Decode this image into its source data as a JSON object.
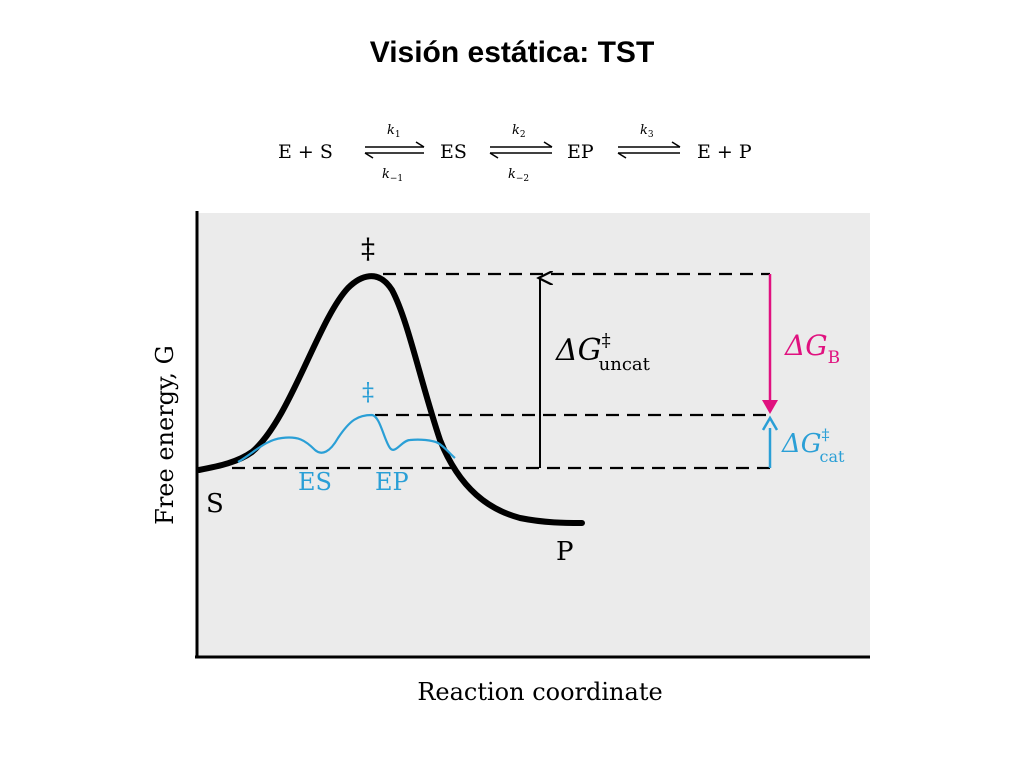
{
  "slide": {
    "title": "Visión estática: TST"
  },
  "scheme": {
    "E_plus_S": "E + S",
    "ES": "ES",
    "EP": "EP",
    "E_plus_P": "E + P",
    "k1": "k",
    "k1_sub": "1",
    "km1": "k",
    "km1_sub": "−1",
    "k2": "k",
    "k2_sub": "2",
    "km2": "k",
    "km2_sub": "−2",
    "k3": "k",
    "k3_sub": "3"
  },
  "diagram": {
    "y_axis_label": "Free energy, G",
    "x_axis_label": "Reaction coordinate",
    "label_S": "S",
    "label_P": "P",
    "label_ES": "ES",
    "label_EP": "EP",
    "ts_uncat": "‡",
    "ts_cat": "‡",
    "dG_uncat_main": "ΔG",
    "dG_uncat_sup": "‡",
    "dG_uncat_sub": "uncat",
    "dG_B_main": "ΔG",
    "dG_B_sub": "B",
    "dG_cat_main": "ΔG",
    "dG_cat_sup": "‡",
    "dG_cat_sub": "cat",
    "colors": {
      "uncatalyzed": "#000000",
      "catalyzed": "#2a9fd6",
      "binding": "#e0117f",
      "plot_background": "#ebebeb"
    }
  }
}
